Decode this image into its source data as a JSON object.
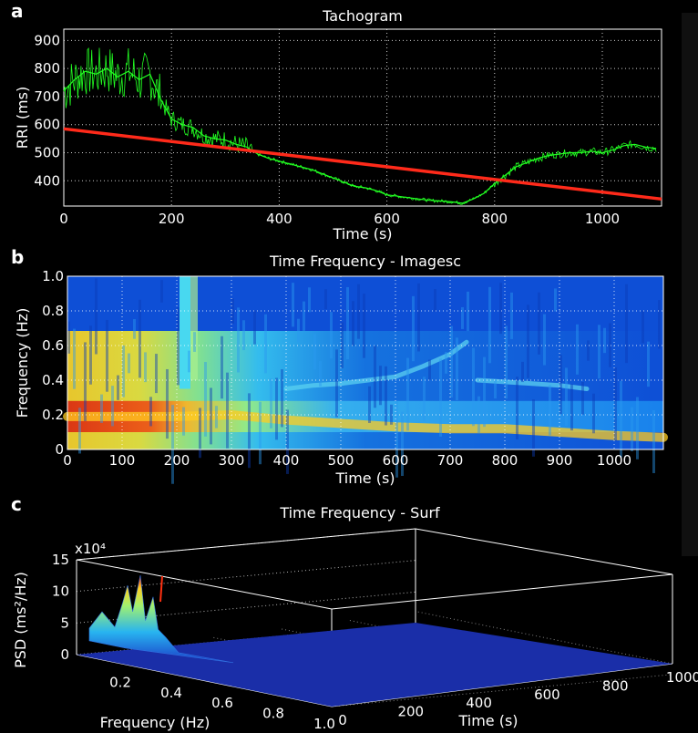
{
  "panels": {
    "a": "a",
    "b": "b",
    "c": "c"
  },
  "chart_data": [
    {
      "type": "line",
      "title": "Tachogram",
      "xlabel": "Time (s)",
      "ylabel": "RRI (ms)",
      "xlim": [
        0,
        1110
      ],
      "ylim": [
        310,
        940
      ],
      "xticks": [
        0,
        200,
        400,
        600,
        800,
        1000
      ],
      "yticks": [
        400,
        500,
        600,
        700,
        800,
        900
      ],
      "grid": true,
      "colors": {
        "rri": "#22ff22",
        "trend": "#ff2a1a",
        "background": "#000000",
        "grid": "#ffffff"
      },
      "series": [
        {
          "x": [
            0,
            20,
            40,
            60,
            80,
            100,
            120,
            140,
            160,
            180,
            200,
            220,
            240,
            260,
            280,
            300,
            320,
            340,
            360,
            380,
            400,
            420,
            440,
            460,
            480,
            500,
            520,
            540,
            560,
            580,
            600,
            620,
            640,
            660,
            680,
            700,
            720,
            740,
            760,
            780,
            800,
            820,
            840,
            860,
            880,
            900,
            920,
            940,
            960,
            980,
            1000,
            1020,
            1040,
            1060,
            1080,
            1100
          ],
          "values": [
            720,
            760,
            790,
            780,
            800,
            770,
            790,
            760,
            780,
            690,
            620,
            600,
            590,
            560,
            550,
            545,
            530,
            520,
            495,
            480,
            470,
            460,
            450,
            440,
            425,
            410,
            395,
            380,
            375,
            365,
            350,
            345,
            340,
            335,
            330,
            328,
            325,
            320,
            335,
            355,
            390,
            420,
            450,
            465,
            480,
            490,
            495,
            500,
            500,
            505,
            500,
            510,
            525,
            530,
            520,
            515
          ]
        },
        {
          "x": [
            0,
            1110
          ],
          "values": [
            585,
            335
          ]
        }
      ]
    },
    {
      "type": "heatmap",
      "title": "Time Frequency - Imagesc",
      "xlabel": "Time (s)",
      "ylabel": "Frequency (Hz)",
      "xlim": [
        0,
        1090
      ],
      "ylim": [
        0,
        1.0
      ],
      "xticks": [
        0,
        100,
        200,
        300,
        400,
        500,
        600,
        700,
        800,
        900,
        1000
      ],
      "yticks": [
        0,
        0.2,
        0.4,
        0.6,
        0.8,
        1.0
      ],
      "ytick_labels": [
        "0",
        "0.2",
        "0.4",
        "0.6",
        "0.8",
        "1.0"
      ],
      "grid": true,
      "colormap": "jet",
      "ridges": [
        {
          "x": [
            0,
            100,
            200,
            300,
            400,
            500,
            600,
            700,
            800,
            900,
            1000,
            1090
          ],
          "values": [
            0.19,
            0.19,
            0.19,
            0.2,
            0.17,
            0.15,
            0.13,
            0.12,
            0.12,
            0.1,
            0.08,
            0.07
          ]
        },
        {
          "x": [
            400,
            450,
            500,
            550,
            600,
            650,
            700,
            730
          ],
          "values": [
            0.35,
            0.37,
            0.38,
            0.4,
            0.42,
            0.48,
            0.55,
            0.62
          ]
        },
        {
          "x": [
            750,
            800,
            850,
            900,
            950
          ],
          "values": [
            0.4,
            0.39,
            0.38,
            0.37,
            0.35
          ]
        }
      ]
    },
    {
      "type": "area",
      "title": "Time Frequency - Surf",
      "xlabel": "Frequency (Hz)",
      "ylabel_time": "Time (s)",
      "zlabel": "PSD (ms²/Hz)",
      "z_exponent": "x10⁴",
      "freq_ticks": [
        "0.2",
        "0.4",
        "0.6",
        "0.8",
        "1.0"
      ],
      "time_ticks": [
        "0",
        "200",
        "400",
        "600",
        "800",
        "1000"
      ],
      "z_ticks": [
        "0",
        "5",
        "10",
        "15"
      ],
      "zlim": [
        0,
        15
      ],
      "freq": [
        0.05,
        0.1,
        0.15,
        0.18,
        0.2,
        0.22,
        0.25,
        0.27,
        0.3,
        0.32,
        0.35,
        0.4
      ],
      "psd_peak_1e4": [
        2,
        5,
        3,
        7,
        10,
        6,
        12,
        5,
        9,
        4,
        3,
        1
      ]
    }
  ]
}
